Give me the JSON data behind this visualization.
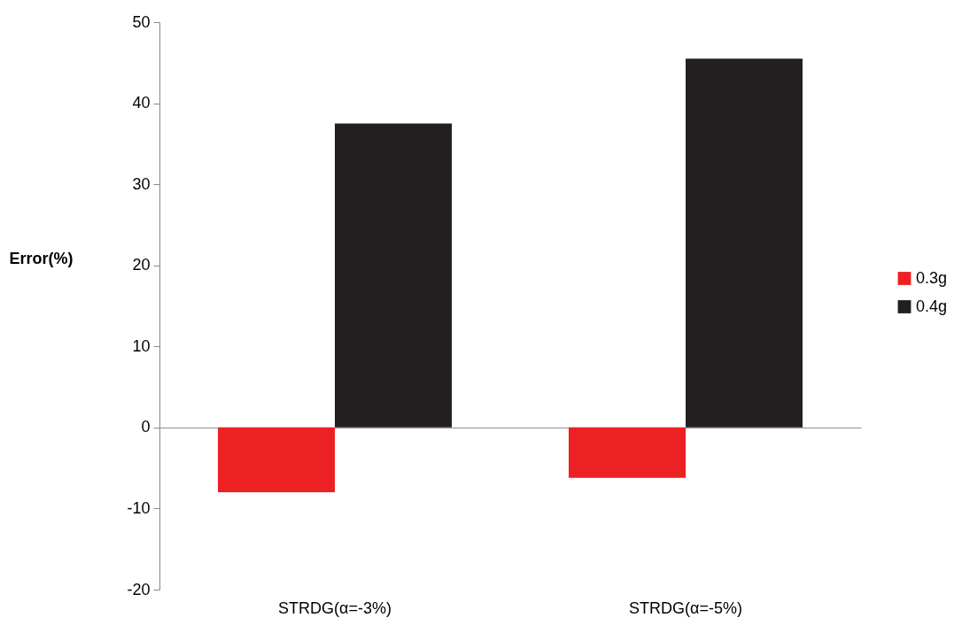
{
  "chart_data": {
    "type": "bar",
    "ylabel": "Error(%)",
    "categories": [
      "STRDG(α=-3%)",
      "STRDG(α=-5%)"
    ],
    "series": [
      {
        "name": "0.3g",
        "color": "#ed2024",
        "values": [
          -8,
          -6.2
        ]
      },
      {
        "name": "0.4g",
        "color": "#231f20",
        "values": [
          37.5,
          45.5
        ]
      }
    ],
    "ylim": [
      -20,
      50
    ],
    "yticks": [
      -20,
      -10,
      0,
      10,
      20,
      30,
      40,
      50
    ],
    "legend": "right"
  }
}
